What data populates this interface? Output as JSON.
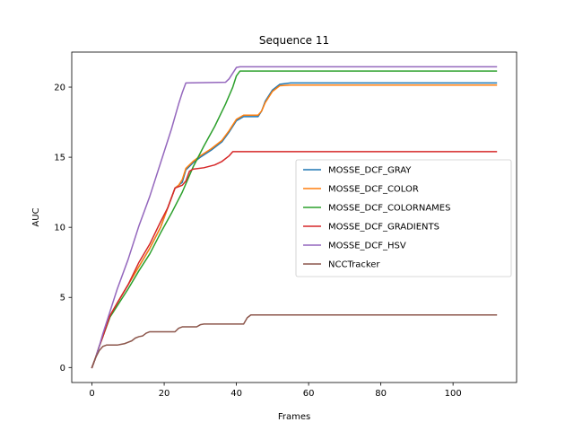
{
  "chart_data": {
    "type": "line",
    "title": "Sequence 11",
    "xlabel": "Frames",
    "ylabel": "AUC",
    "xlim": [
      -5.6,
      117.6
    ],
    "ylim": [
      -1.07,
      22.5
    ],
    "xticks": [
      0,
      20,
      40,
      60,
      80,
      100
    ],
    "yticks": [
      0,
      5,
      10,
      15,
      20
    ],
    "grid": false,
    "legend_position": "center-right",
    "series": [
      {
        "name": "MOSSE_DCF_GRAY",
        "color": "#1f77b4",
        "points": [
          [
            0,
            0
          ],
          [
            1,
            0.7
          ],
          [
            2,
            1.5
          ],
          [
            3,
            2.2
          ],
          [
            5,
            3.7
          ],
          [
            7,
            4.6
          ],
          [
            10,
            5.9
          ],
          [
            13,
            7.2
          ],
          [
            16,
            8.5
          ],
          [
            19,
            10.0
          ],
          [
            23,
            12.8
          ],
          [
            24,
            13.0
          ],
          [
            25,
            13.2
          ],
          [
            26,
            14.1
          ],
          [
            28,
            14.6
          ],
          [
            30,
            15.0
          ],
          [
            33,
            15.5
          ],
          [
            36,
            16.1
          ],
          [
            38,
            16.8
          ],
          [
            40,
            17.6
          ],
          [
            42,
            17.9
          ],
          [
            46,
            17.9
          ],
          [
            47,
            18.3
          ],
          [
            48,
            19.0
          ],
          [
            50,
            19.8
          ],
          [
            52,
            20.2
          ],
          [
            55,
            20.3
          ],
          [
            112,
            20.3
          ]
        ]
      },
      {
        "name": "MOSSE_DCF_COLOR",
        "color": "#ff7f0e",
        "points": [
          [
            0,
            0
          ],
          [
            1,
            0.7
          ],
          [
            2,
            1.5
          ],
          [
            3,
            2.2
          ],
          [
            5,
            3.7
          ],
          [
            7,
            4.6
          ],
          [
            10,
            5.9
          ],
          [
            13,
            7.2
          ],
          [
            16,
            8.5
          ],
          [
            19,
            10.0
          ],
          [
            23,
            12.8
          ],
          [
            24,
            13.0
          ],
          [
            25,
            13.4
          ],
          [
            26,
            14.2
          ],
          [
            28,
            14.7
          ],
          [
            30,
            15.1
          ],
          [
            33,
            15.6
          ],
          [
            36,
            16.2
          ],
          [
            38,
            16.9
          ],
          [
            40,
            17.7
          ],
          [
            42,
            18.0
          ],
          [
            46,
            18.0
          ],
          [
            47,
            18.3
          ],
          [
            48,
            18.9
          ],
          [
            50,
            19.7
          ],
          [
            52,
            20.1
          ],
          [
            55,
            20.15
          ],
          [
            112,
            20.15
          ]
        ]
      },
      {
        "name": "MOSSE_DCF_COLORNAMES",
        "color": "#2ca02c",
        "points": [
          [
            0,
            0
          ],
          [
            1,
            0.7
          ],
          [
            2,
            1.5
          ],
          [
            3,
            2.2
          ],
          [
            5,
            3.6
          ],
          [
            7,
            4.4
          ],
          [
            10,
            5.6
          ],
          [
            13,
            6.9
          ],
          [
            16,
            8.1
          ],
          [
            19,
            9.6
          ],
          [
            22,
            11.0
          ],
          [
            25,
            12.5
          ],
          [
            28,
            14.3
          ],
          [
            31,
            15.8
          ],
          [
            34,
            17.2
          ],
          [
            37,
            18.8
          ],
          [
            39,
            20.0
          ],
          [
            40,
            20.8
          ],
          [
            41,
            21.15
          ],
          [
            112,
            21.15
          ]
        ]
      },
      {
        "name": "MOSSE_DCF_GRADIENTS",
        "color": "#d62728",
        "points": [
          [
            0,
            0
          ],
          [
            1,
            0.7
          ],
          [
            2,
            1.5
          ],
          [
            3,
            2.2
          ],
          [
            5,
            3.7
          ],
          [
            7,
            4.6
          ],
          [
            10,
            5.9
          ],
          [
            13,
            7.5
          ],
          [
            16,
            8.8
          ],
          [
            19,
            10.4
          ],
          [
            21,
            11.4
          ],
          [
            23,
            12.8
          ],
          [
            25,
            13.0
          ],
          [
            26,
            13.3
          ],
          [
            27,
            14.0
          ],
          [
            28,
            14.15
          ],
          [
            31,
            14.25
          ],
          [
            34,
            14.45
          ],
          [
            36,
            14.7
          ],
          [
            38,
            15.1
          ],
          [
            39,
            15.4
          ],
          [
            112,
            15.4
          ]
        ]
      },
      {
        "name": "MOSSE_DCF_HSV",
        "color": "#9467bd",
        "points": [
          [
            0,
            0
          ],
          [
            1,
            0.7
          ],
          [
            2,
            1.5
          ],
          [
            3,
            2.4
          ],
          [
            5,
            4.0
          ],
          [
            7,
            5.6
          ],
          [
            10,
            7.7
          ],
          [
            13,
            10.1
          ],
          [
            16,
            12.2
          ],
          [
            19,
            14.6
          ],
          [
            22,
            17.0
          ],
          [
            24,
            18.8
          ],
          [
            25,
            19.6
          ],
          [
            26,
            20.3
          ],
          [
            37,
            20.35
          ],
          [
            38,
            20.6
          ],
          [
            39,
            21.0
          ],
          [
            40,
            21.4
          ],
          [
            41,
            21.45
          ],
          [
            112,
            21.45
          ]
        ]
      },
      {
        "name": "NCCTracker",
        "color": "#8c564b",
        "points": [
          [
            0,
            0
          ],
          [
            1,
            0.7
          ],
          [
            2,
            1.2
          ],
          [
            3,
            1.5
          ],
          [
            4,
            1.6
          ],
          [
            7,
            1.6
          ],
          [
            8,
            1.65
          ],
          [
            9,
            1.7
          ],
          [
            11,
            1.9
          ],
          [
            12,
            2.1
          ],
          [
            13,
            2.2
          ],
          [
            14,
            2.25
          ],
          [
            15,
            2.45
          ],
          [
            16,
            2.55
          ],
          [
            23,
            2.55
          ],
          [
            24,
            2.8
          ],
          [
            25,
            2.9
          ],
          [
            29,
            2.9
          ],
          [
            30,
            3.05
          ],
          [
            31,
            3.1
          ],
          [
            42,
            3.1
          ],
          [
            43,
            3.55
          ],
          [
            44,
            3.75
          ],
          [
            112,
            3.75
          ]
        ]
      }
    ]
  }
}
